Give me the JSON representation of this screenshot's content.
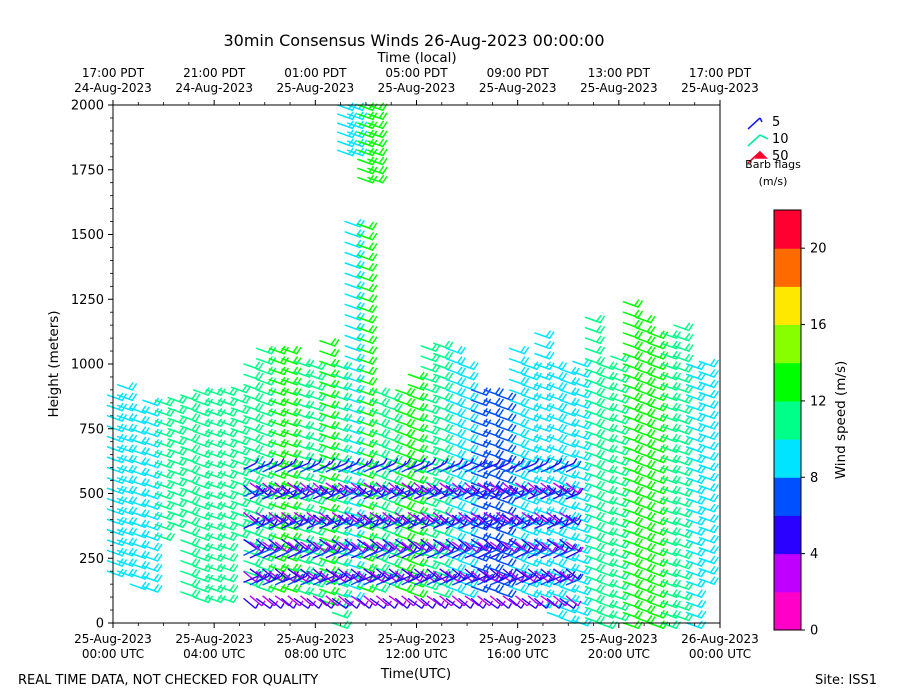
{
  "chart_data": {
    "type": "wind-barb-profiler",
    "title": "30min Consensus Winds 26-Aug-2023 00:00:00",
    "xlabel_bottom": "Time(UTC)",
    "xlabel_top": "Time (local)",
    "ylabel": "Height (meters)",
    "xlim_hours": [
      0,
      24
    ],
    "ylim": [
      0,
      2000
    ],
    "y_ticks": [
      "0",
      "250",
      "500",
      "750",
      "1000",
      "1250",
      "1500",
      "1750",
      "2000"
    ],
    "y_tick_values": [
      0,
      250,
      500,
      750,
      1000,
      1250,
      1500,
      1750,
      2000
    ],
    "x_tick_hours": [
      0,
      4,
      8,
      12,
      16,
      20,
      24
    ],
    "bottom_ticks": [
      {
        "date": "25-Aug-2023",
        "time": "00:00 UTC"
      },
      {
        "date": "25-Aug-2023",
        "time": "04:00 UTC"
      },
      {
        "date": "25-Aug-2023",
        "time": "08:00 UTC"
      },
      {
        "date": "25-Aug-2023",
        "time": "12:00 UTC"
      },
      {
        "date": "25-Aug-2023",
        "time": "16:00 UTC"
      },
      {
        "date": "25-Aug-2023",
        "time": "20:00 UTC"
      },
      {
        "date": "26-Aug-2023",
        "time": "00:00 UTC"
      }
    ],
    "top_ticks": [
      {
        "time": "17:00 PDT",
        "date": "24-Aug-2023"
      },
      {
        "time": "21:00 PDT",
        "date": "24-Aug-2023"
      },
      {
        "time": "01:00 PDT",
        "date": "25-Aug-2023"
      },
      {
        "time": "05:00 PDT",
        "date": "25-Aug-2023"
      },
      {
        "time": "09:00 PDT",
        "date": "25-Aug-2023"
      },
      {
        "time": "13:00 PDT",
        "date": "25-Aug-2023"
      },
      {
        "time": "17:00 PDT",
        "date": "25-Aug-2023"
      }
    ],
    "colorbar": {
      "label": "Wind speed (m/s)",
      "min": 0,
      "max": 22,
      "step": 2,
      "ticks": [
        "0",
        "4",
        "8",
        "12",
        "16",
        "20"
      ],
      "tick_values": [
        0,
        4,
        8,
        12,
        16,
        20
      ],
      "colors": [
        "#ff00c8",
        "#c000ff",
        "#2a00ff",
        "#0050ff",
        "#00e4ff",
        "#00ff88",
        "#00ff00",
        "#88ff00",
        "#ffe800",
        "#ff6a00",
        "#ff0030"
      ]
    },
    "legend": {
      "title_line1": "Barb flags",
      "title_line2": "(m/s)",
      "entries": [
        {
          "label": "5",
          "color": "#1a1aff"
        },
        {
          "label": "10",
          "color": "#00f0a0"
        },
        {
          "label": "50",
          "color": "#ff0030"
        }
      ]
    },
    "columns": [
      {
        "t": 0.1,
        "top": 880,
        "bottom": 180,
        "speed": 8.5
      },
      {
        "t": 0.5,
        "top": 920,
        "bottom": 200,
        "speed": 8.5
      },
      {
        "t": 1.0,
        "top": 830,
        "bottom": 140,
        "speed": 9
      },
      {
        "t": 1.5,
        "top": 860,
        "bottom": 130,
        "speed": 8.8
      },
      {
        "t": 2.0,
        "top": 860,
        "bottom": 330,
        "speed": 10.5
      },
      {
        "t": 2.5,
        "top": 870,
        "bottom": 390,
        "speed": 10.5
      },
      {
        "t": 3.0,
        "top": 880,
        "bottom": 110,
        "speed": 10.8
      },
      {
        "t": 3.5,
        "top": 900,
        "bottom": 100,
        "speed": 10.5
      },
      {
        "t": 4.0,
        "top": 900,
        "bottom": 90,
        "speed": 10.5
      },
      {
        "t": 4.5,
        "top": 900,
        "bottom": 100,
        "speed": 11
      },
      {
        "t": 5.0,
        "top": 910,
        "bottom": 350,
        "speed": 10.5
      },
      {
        "t": 5.5,
        "top": 1000,
        "bottom": 130,
        "speed": 11
      },
      {
        "t": 6.0,
        "top": 1060,
        "bottom": 140,
        "speed": 11.5
      },
      {
        "t": 6.5,
        "top": 1060,
        "bottom": 130,
        "speed": 12.5
      },
      {
        "t": 7.0,
        "top": 1060,
        "bottom": 120,
        "speed": 12
      },
      {
        "t": 7.5,
        "top": 1010,
        "bottom": 110,
        "speed": 11.5
      },
      {
        "t": 8.0,
        "top": 1000,
        "bottom": 100,
        "speed": 10.5
      },
      {
        "t": 8.5,
        "top": 1090,
        "bottom": 80,
        "speed": 12.5
      },
      {
        "t": 9.0,
        "top": 1000,
        "bottom": 0,
        "speed": 11.5
      },
      {
        "t": 9.5,
        "top": 1550,
        "bottom": 110,
        "speed": 9
      },
      {
        "t": 10.0,
        "top": 1540,
        "bottom": 130,
        "speed": 13.5
      },
      {
        "t": 10.5,
        "top": 900,
        "bottom": 120,
        "speed": 11.5
      },
      {
        "t": 11.0,
        "top": 880,
        "bottom": 150,
        "speed": 10.5
      },
      {
        "t": 11.5,
        "top": 900,
        "bottom": 140,
        "speed": 12
      },
      {
        "t": 12.0,
        "top": 960,
        "bottom": 120,
        "speed": 12
      },
      {
        "t": 12.5,
        "top": 1070,
        "bottom": 120,
        "speed": 11
      },
      {
        "t": 13.0,
        "top": 1080,
        "bottom": 100,
        "speed": 10.5
      },
      {
        "t": 13.5,
        "top": 1060,
        "bottom": 110,
        "speed": 9.5
      },
      {
        "t": 14.0,
        "top": 1000,
        "bottom": 120,
        "speed": 9
      },
      {
        "t": 14.5,
        "top": 900,
        "bottom": 140,
        "speed": 7.5
      },
      {
        "t": 15.0,
        "top": 900,
        "bottom": 130,
        "speed": 7.5
      },
      {
        "t": 15.5,
        "top": 880,
        "bottom": 120,
        "speed": 7.5
      },
      {
        "t": 16.0,
        "top": 1060,
        "bottom": 110,
        "speed": 8.5
      },
      {
        "t": 16.5,
        "top": 1000,
        "bottom": 90,
        "speed": 8.5
      },
      {
        "t": 17.0,
        "top": 1120,
        "bottom": 60,
        "speed": 8.5
      },
      {
        "t": 17.5,
        "top": 1000,
        "bottom": 30,
        "speed": 8.5
      },
      {
        "t": 18.0,
        "top": 980,
        "bottom": 0,
        "speed": 9
      },
      {
        "t": 18.5,
        "top": 1010,
        "bottom": 0,
        "speed": 9.5
      },
      {
        "t": 19.0,
        "top": 1180,
        "bottom": 0,
        "speed": 11
      },
      {
        "t": 19.5,
        "top": 1000,
        "bottom": 0,
        "speed": 10.5
      },
      {
        "t": 20.0,
        "top": 1030,
        "bottom": 0,
        "speed": 11
      },
      {
        "t": 20.5,
        "top": 1240,
        "bottom": 0,
        "speed": 12.5
      },
      {
        "t": 21.0,
        "top": 1180,
        "bottom": 0,
        "speed": 12.5
      },
      {
        "t": 21.5,
        "top": 1120,
        "bottom": 0,
        "speed": 12.5
      },
      {
        "t": 22.0,
        "top": 1120,
        "bottom": 0,
        "speed": 11.5
      },
      {
        "t": 22.5,
        "top": 1150,
        "bottom": 0,
        "speed": 10.5
      },
      {
        "t": 23.0,
        "top": 1000,
        "bottom": 0,
        "speed": 9.5
      },
      {
        "t": 23.5,
        "top": 1010,
        "bottom": 170,
        "speed": 9
      }
    ],
    "upper_cluster": [
      {
        "t": 9.2,
        "top": 2000,
        "bottom": 1810,
        "speed": 9
      },
      {
        "t": 9.6,
        "top": 2000,
        "bottom": 1820,
        "speed": 8.5
      },
      {
        "t": 10.0,
        "top": 2000,
        "bottom": 1690,
        "speed": 13
      },
      {
        "t": 10.4,
        "top": 2000,
        "bottom": 1720,
        "speed": 13
      }
    ],
    "low_level_zone": {
      "t_start": 5.4,
      "t_end": 18.2,
      "top": 600,
      "bottom": 80,
      "speeds": [
        3,
        4.5,
        5.5,
        6.5
      ]
    }
  },
  "footer": {
    "left": "REAL TIME DATA, NOT CHECKED FOR QUALITY",
    "right": "Site: ISS1"
  }
}
